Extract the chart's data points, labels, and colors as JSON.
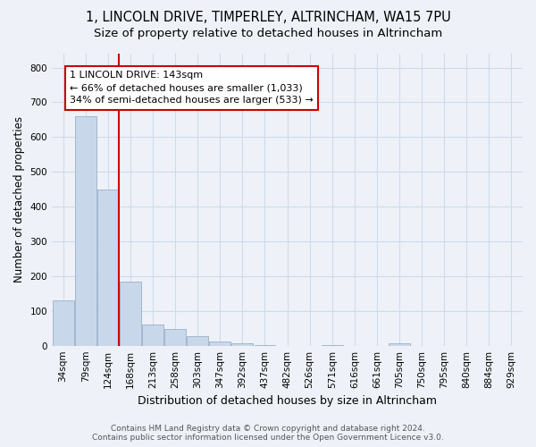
{
  "title": "1, LINCOLN DRIVE, TIMPERLEY, ALTRINCHAM, WA15 7PU",
  "subtitle": "Size of property relative to detached houses in Altrincham",
  "xlabel": "Distribution of detached houses by size in Altrincham",
  "ylabel": "Number of detached properties",
  "categories": [
    "34sqm",
    "79sqm",
    "124sqm",
    "168sqm",
    "213sqm",
    "258sqm",
    "303sqm",
    "347sqm",
    "392sqm",
    "437sqm",
    "482sqm",
    "526sqm",
    "571sqm",
    "616sqm",
    "661sqm",
    "705sqm",
    "750sqm",
    "795sqm",
    "840sqm",
    "884sqm",
    "929sqm"
  ],
  "values": [
    130,
    660,
    450,
    185,
    60,
    48,
    28,
    12,
    8,
    3,
    0,
    0,
    3,
    0,
    0,
    8,
    0,
    0,
    0,
    0,
    0
  ],
  "bar_color": "#c8d8ea",
  "bar_edge_color": "#9ab0c8",
  "red_line_x": 2.5,
  "annotation_line1": "1 LINCOLN DRIVE: 143sqm",
  "annotation_line2": "← 66% of detached houses are smaller (1,033)",
  "annotation_line3": "34% of semi-detached houses are larger (533) →",
  "red_line_color": "#cc0000",
  "annotation_box_color": "#ffffff",
  "annotation_box_edge": "#cc0000",
  "ylim": [
    0,
    840
  ],
  "yticks": [
    0,
    100,
    200,
    300,
    400,
    500,
    600,
    700,
    800
  ],
  "footer1": "Contains HM Land Registry data © Crown copyright and database right 2024.",
  "footer2": "Contains public sector information licensed under the Open Government Licence v3.0.",
  "bg_color": "#eef2f8",
  "grid_color": "#d0daea",
  "title_fontsize": 10.5,
  "subtitle_fontsize": 9.5,
  "tick_fontsize": 7.5,
  "ylabel_fontsize": 8.5,
  "xlabel_fontsize": 9
}
